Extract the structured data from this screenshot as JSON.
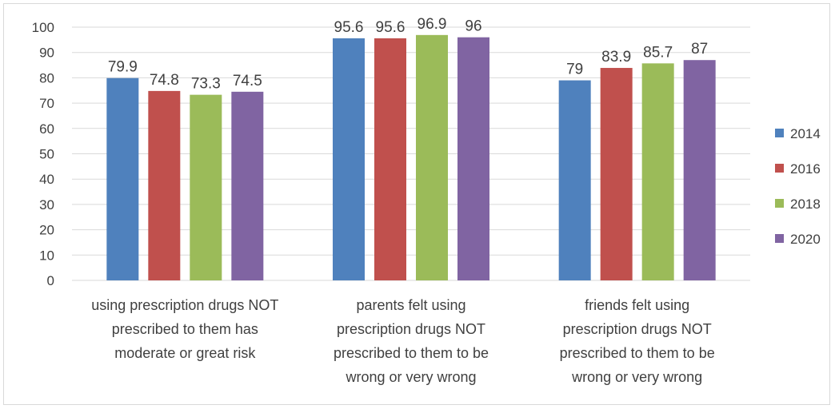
{
  "chart_data": {
    "type": "bar",
    "title": "",
    "xlabel": "",
    "ylabel": "",
    "ylim": [
      0,
      100
    ],
    "yticks": [
      0,
      10,
      20,
      30,
      40,
      50,
      60,
      70,
      80,
      90,
      100
    ],
    "grid": true,
    "legend_position": "right",
    "categories": [
      "using prescription drugs NOT prescribed to them has moderate or great risk",
      "parents felt using prescription drugs NOT prescribed to them to be wrong or very wrong",
      "friends felt using prescription drugs NOT prescribed to them to be wrong or very wrong"
    ],
    "category_lines": [
      [
        "using prescription drugs NOT",
        "prescribed to them has",
        "moderate or great risk"
      ],
      [
        "parents felt using",
        "prescription drugs NOT",
        "prescribed to them to be",
        "wrong or very wrong"
      ],
      [
        "friends felt using",
        "prescription drugs NOT",
        "prescribed to them to be",
        "wrong or very wrong"
      ]
    ],
    "series": [
      {
        "name": "2014",
        "color": "#4F81BD",
        "values": [
          79.9,
          95.6,
          79
        ]
      },
      {
        "name": "2016",
        "color": "#C0504D",
        "values": [
          74.8,
          95.6,
          83.9
        ]
      },
      {
        "name": "2018",
        "color": "#9BBB59",
        "values": [
          73.3,
          96.9,
          85.7
        ]
      },
      {
        "name": "2020",
        "color": "#8064A2",
        "values": [
          74.5,
          96,
          87
        ]
      }
    ]
  }
}
